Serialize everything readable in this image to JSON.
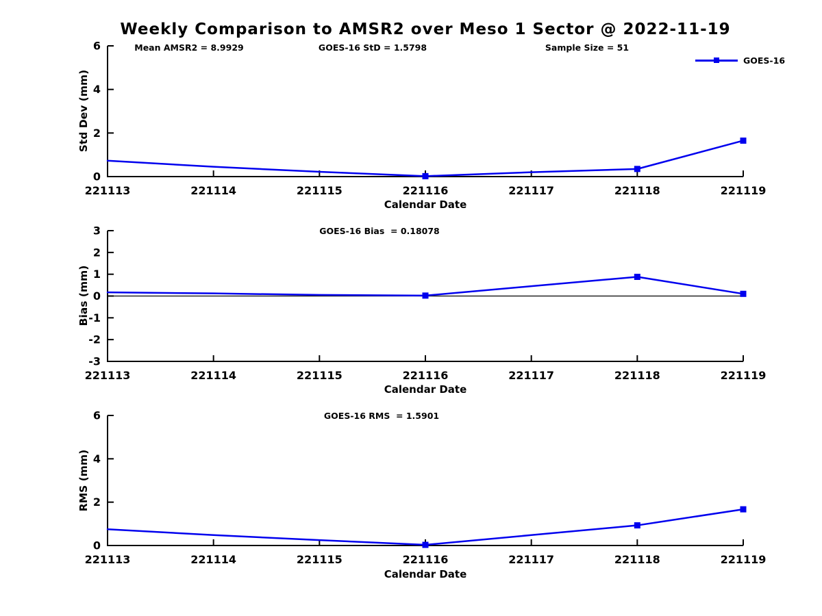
{
  "title": "Weekly Comparison to AMSR2 over Meso 1 Sector @ 2022-11-19",
  "legend": {
    "label": "GOES-16"
  },
  "colors": {
    "series": "#0000EE",
    "axis": "#000000",
    "zero_line": "#000000",
    "text": "#000000",
    "background": "#ffffff"
  },
  "stats": {
    "mean_amsr2": 8.9929,
    "goes16_std": 1.5798,
    "sample_size": 51,
    "goes16_bias": 0.18078,
    "goes16_rms": 1.5901
  },
  "chart_data": [
    {
      "type": "line",
      "name": "std-dev",
      "ylabel": "Std Dev (mm)",
      "xlabel": "Calendar Date",
      "categories": [
        "221113",
        "221114",
        "221115",
        "221116",
        "221117",
        "221118",
        "221119"
      ],
      "series": [
        {
          "name": "GOES-16",
          "values": [
            0.73,
            0.45,
            0.22,
            0.02,
            0.2,
            0.35,
            1.65
          ],
          "marker_dates": [
            "221116",
            "221118",
            "221119"
          ]
        }
      ],
      "ylim": [
        0,
        6
      ],
      "yticks": [
        0,
        2,
        4,
        6
      ],
      "zero_line": false,
      "grid": false,
      "legend_position": "top-right",
      "annotations": [
        "Mean AMSR2 = 8.9929",
        "GOES-16 StD = 1.5798",
        "Sample Size = 51"
      ]
    },
    {
      "type": "line",
      "name": "bias",
      "ylabel": "Bias (mm)",
      "xlabel": "Calendar Date",
      "categories": [
        "221113",
        "221114",
        "221115",
        "221116",
        "221117",
        "221118",
        "221119"
      ],
      "series": [
        {
          "name": "GOES-16",
          "values": [
            0.17,
            0.12,
            0.05,
            0.02,
            0.45,
            0.88,
            0.1
          ],
          "marker_dates": [
            "221116",
            "221118",
            "221119"
          ]
        }
      ],
      "ylim": [
        -3,
        3
      ],
      "yticks": [
        -3,
        -2,
        -1,
        0,
        1,
        2,
        3
      ],
      "zero_line": true,
      "grid": false,
      "annotations": [
        "GOES-16 Bias  = 0.18078"
      ]
    },
    {
      "type": "line",
      "name": "rms",
      "ylabel": "RMS (mm)",
      "xlabel": "Calendar Date",
      "categories": [
        "221113",
        "221114",
        "221115",
        "221116",
        "221117",
        "221118",
        "221119"
      ],
      "series": [
        {
          "name": "GOES-16",
          "values": [
            0.75,
            0.48,
            0.25,
            0.03,
            0.48,
            0.93,
            1.67
          ],
          "marker_dates": [
            "221116",
            "221118",
            "221119"
          ]
        }
      ],
      "ylim": [
        0,
        6
      ],
      "yticks": [
        0,
        2,
        4,
        6
      ],
      "zero_line": false,
      "grid": false,
      "annotations": [
        "GOES-16 RMS  = 1.5901"
      ]
    }
  ]
}
